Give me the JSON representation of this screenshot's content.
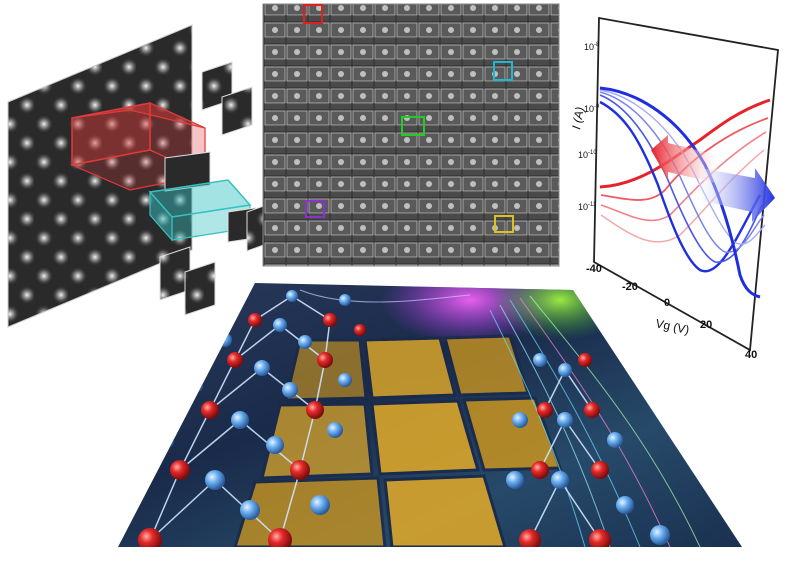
{
  "graph": {
    "y_axis_label": "I (A)",
    "x_axis_label": "Vg (V)",
    "y_ticks": [
      {
        "label": "10",
        "exp": "-8"
      },
      {
        "label": "10",
        "exp": "-9"
      },
      {
        "label": "10",
        "exp": "-10"
      },
      {
        "label": "10",
        "exp": "-11"
      }
    ],
    "x_ticks": [
      "-40",
      "-20",
      "0",
      "20",
      "40"
    ],
    "colors": {
      "red": "#e8222a",
      "blue": "#1f2fe0"
    }
  },
  "tem_stack": {
    "highlight_colors": [
      "#e03a3a",
      "#36c0c0"
    ]
  },
  "stem_grid": {
    "marker_colors": [
      "#e02020",
      "#20b8d0",
      "#22cc22",
      "#8833cc",
      "#e0c020"
    ]
  },
  "illustration": {
    "atom_colors": {
      "metal": "#e62a2a",
      "chalcogen": "#6aaef0"
    },
    "chip_color": "#d9a52a"
  }
}
